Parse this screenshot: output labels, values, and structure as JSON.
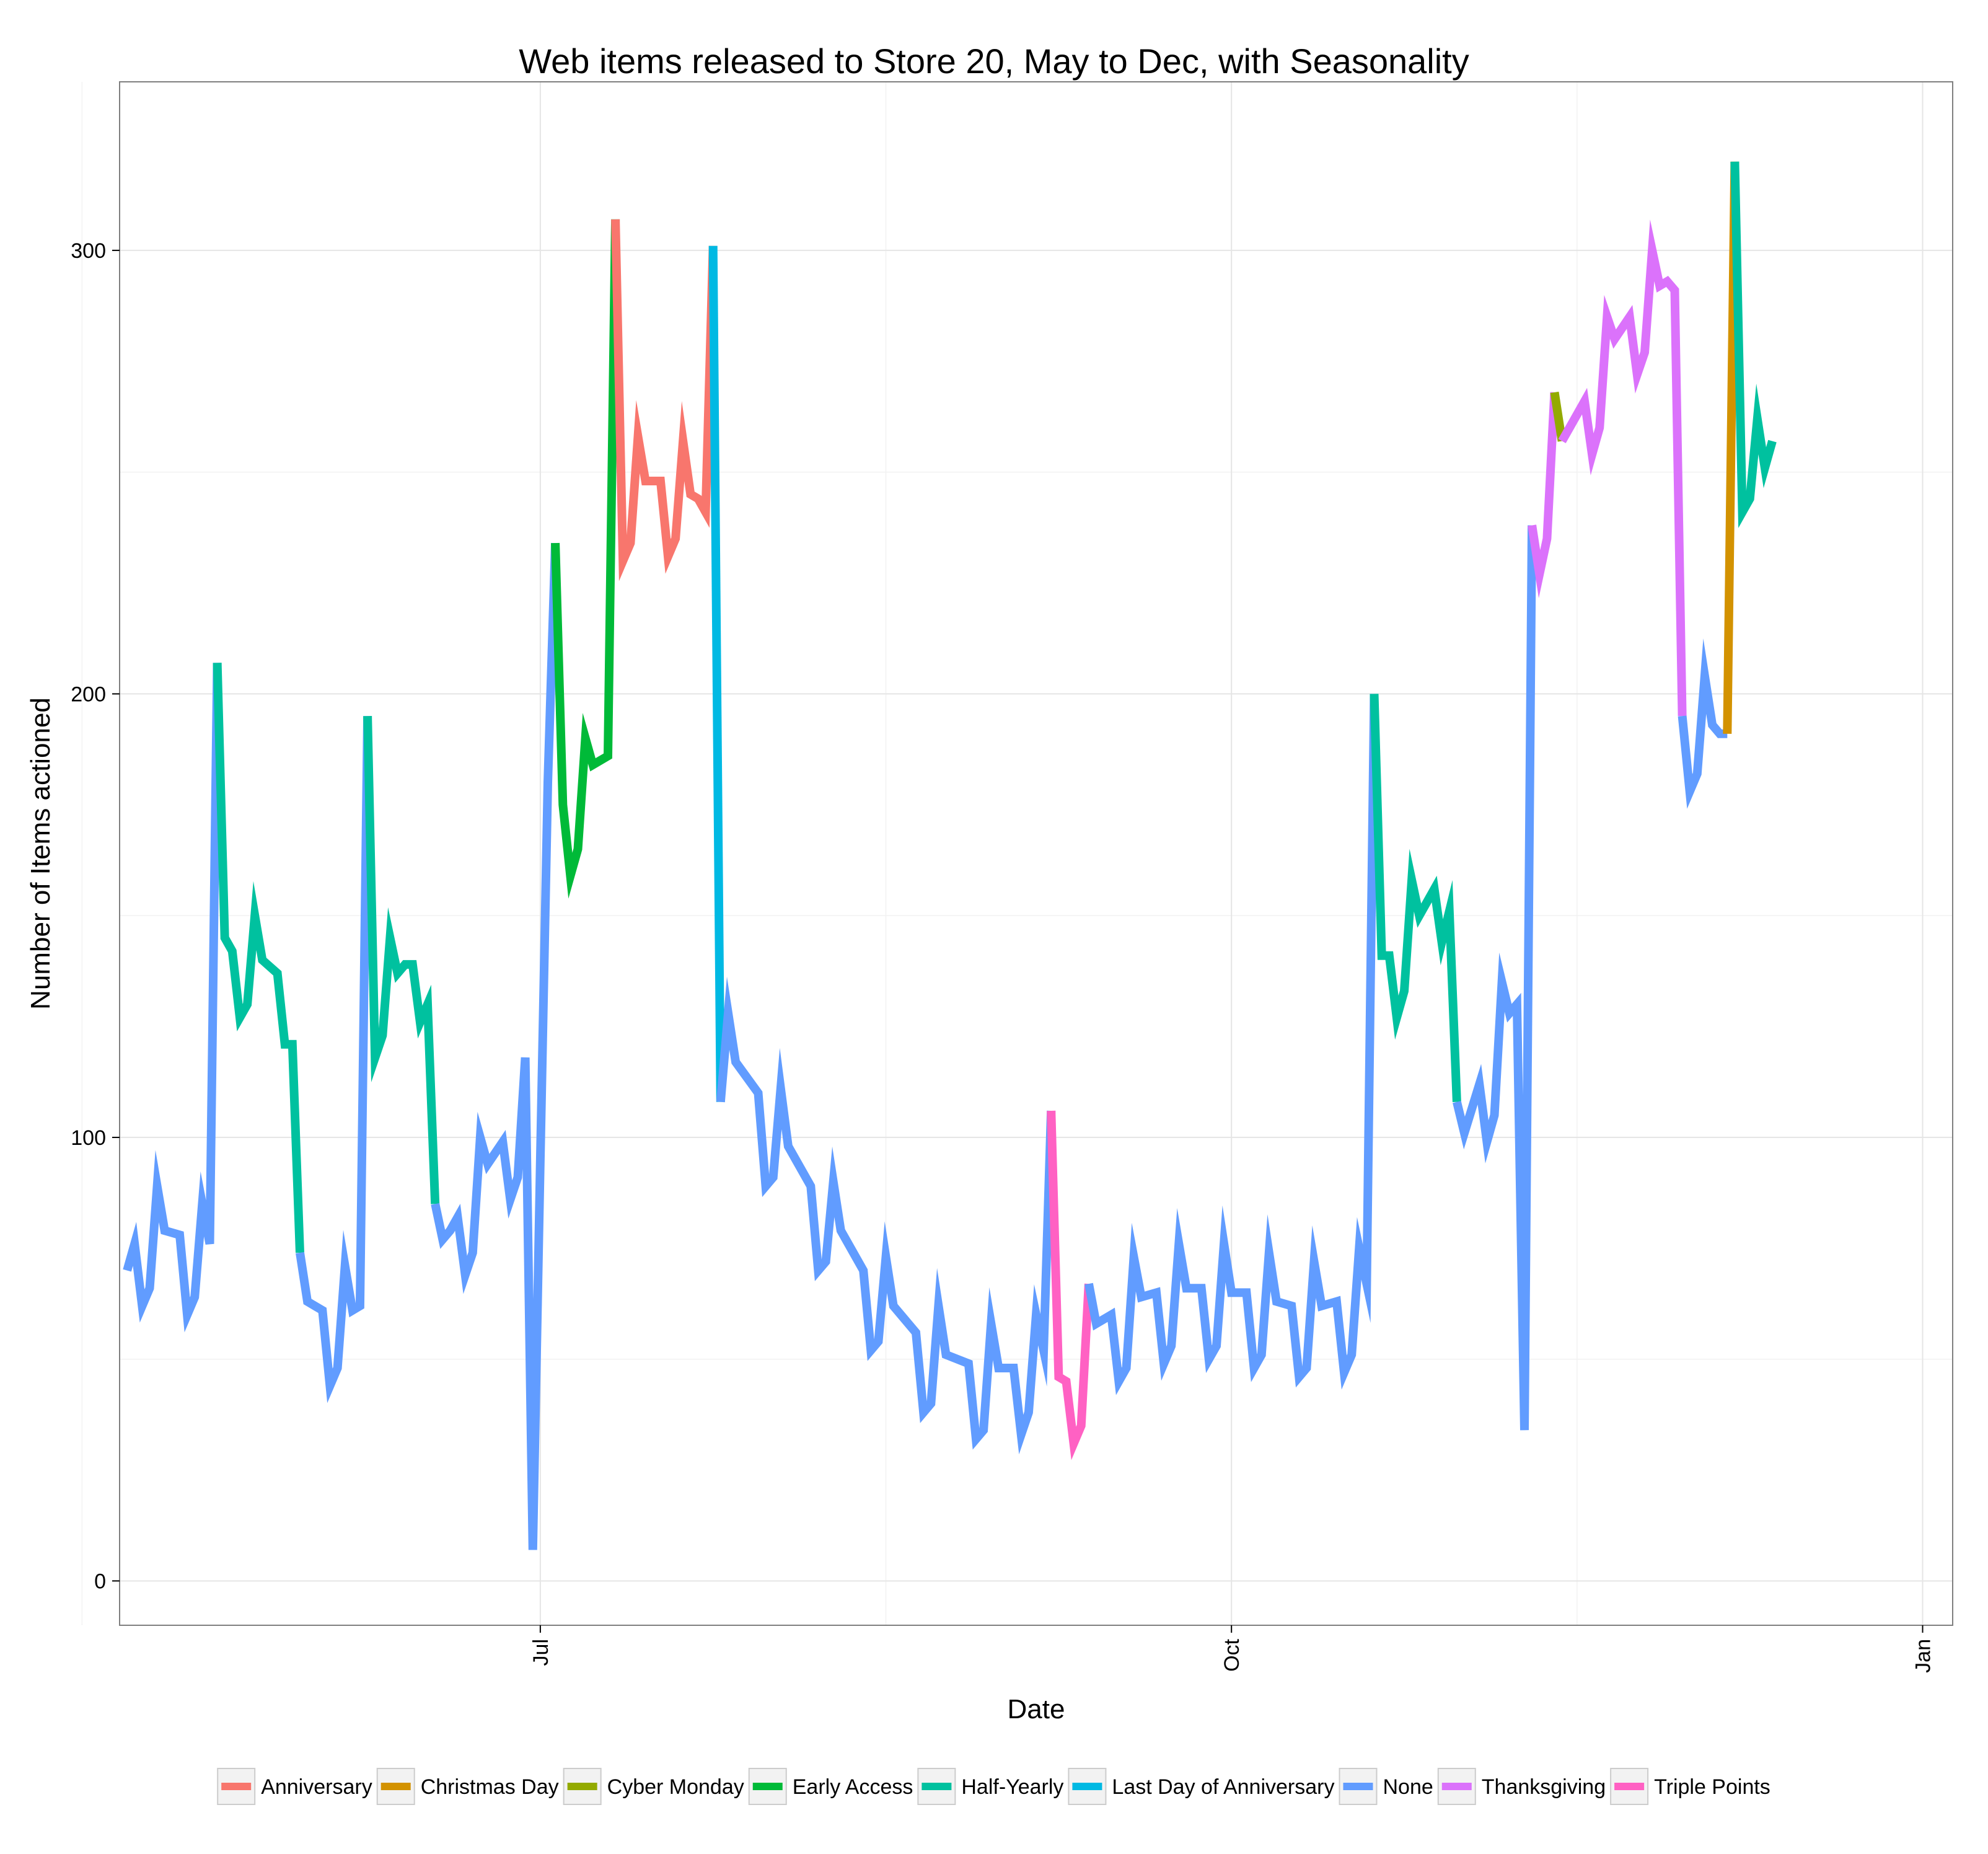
{
  "chart_data": {
    "type": "line",
    "title": "Web items released to Store 20, May to Dec, with Seasonality",
    "xlabel": "Date",
    "ylabel": "Number of Items actioned",
    "x_axis": {
      "type": "date",
      "range": [
        "2015-05-06",
        "2016-01-05"
      ],
      "ticks": [
        {
          "date": "2015-07-01",
          "label": "Jul"
        },
        {
          "date": "2015-10-01",
          "label": "Oct"
        },
        {
          "date": "2016-01-01",
          "label": "Jan"
        }
      ],
      "minor_grid": [
        "2015-05-01",
        "2015-08-16",
        "2015-11-16"
      ],
      "tick_label_rotation": "vertical"
    },
    "y_axis": {
      "range": [
        -10,
        338
      ],
      "ticks": [
        0,
        100,
        200,
        300
      ],
      "minor_grid": [
        50,
        150,
        250
      ]
    },
    "grid": true,
    "legend": {
      "position": "bottom",
      "entries": [
        "Anniversary",
        "Christmas Day",
        "Cyber Monday",
        "Early Access",
        "Half-Yearly",
        "Last Day of Anniversary",
        "None",
        "Thanksgiving",
        "Triple Points"
      ]
    },
    "colors": {
      "Anniversary": "#F8766D",
      "Christmas Day": "#D39200",
      "Cyber Monday": "#93AA00",
      "Early Access": "#00BA38",
      "Half-Yearly": "#00C19F",
      "Last Day of Anniversary": "#00B9E3",
      "None": "#619CFF",
      "Thanksgiving": "#DB72FB",
      "Triple Points": "#FF61C3"
    },
    "series": [
      {
        "name": "None",
        "points": [
          [
            "2015-05-07",
            70
          ],
          [
            "2015-05-08",
            76
          ],
          [
            "2015-05-09",
            62
          ],
          [
            "2015-05-10",
            66
          ],
          [
            "2015-05-11",
            89
          ],
          [
            "2015-05-12",
            79
          ],
          [
            "2015-05-14",
            78
          ],
          [
            "2015-05-15",
            60
          ],
          [
            "2015-05-16",
            64
          ],
          [
            "2015-05-17",
            85
          ],
          [
            "2015-05-18",
            76
          ],
          [
            "2015-05-19",
            207
          ]
        ]
      },
      {
        "name": "Half-Yearly",
        "points": [
          [
            "2015-05-19",
            207
          ],
          [
            "2015-05-20",
            145
          ],
          [
            "2015-05-21",
            142
          ],
          [
            "2015-05-22",
            127
          ],
          [
            "2015-05-23",
            130
          ],
          [
            "2015-05-24",
            150
          ],
          [
            "2015-05-25",
            140
          ],
          [
            "2015-05-27",
            137
          ],
          [
            "2015-05-28",
            121
          ],
          [
            "2015-05-29",
            121
          ],
          [
            "2015-05-30",
            74
          ]
        ]
      },
      {
        "name": "None",
        "points": [
          [
            "2015-05-30",
            74
          ],
          [
            "2015-05-31",
            63
          ],
          [
            "2015-06-02",
            61
          ],
          [
            "2015-06-03",
            44
          ],
          [
            "2015-06-04",
            48
          ],
          [
            "2015-06-05",
            71
          ],
          [
            "2015-06-06",
            61
          ],
          [
            "2015-06-07",
            62
          ],
          [
            "2015-06-08",
            195
          ]
        ]
      },
      {
        "name": "Half-Yearly",
        "points": [
          [
            "2015-06-08",
            195
          ],
          [
            "2015-06-09",
            118
          ],
          [
            "2015-06-10",
            123
          ],
          [
            "2015-06-11",
            145
          ],
          [
            "2015-06-12",
            137
          ],
          [
            "2015-06-13",
            139
          ],
          [
            "2015-06-14",
            139
          ],
          [
            "2015-06-15",
            126
          ],
          [
            "2015-06-16",
            130
          ],
          [
            "2015-06-17",
            85
          ]
        ]
      },
      {
        "name": "None",
        "points": [
          [
            "2015-06-17",
            85
          ],
          [
            "2015-06-18",
            77
          ],
          [
            "2015-06-19",
            79
          ],
          [
            "2015-06-20",
            82
          ],
          [
            "2015-06-21",
            69
          ],
          [
            "2015-06-22",
            74
          ],
          [
            "2015-06-23",
            100
          ],
          [
            "2015-06-24",
            94
          ],
          [
            "2015-06-26",
            99
          ],
          [
            "2015-06-27",
            86
          ],
          [
            "2015-06-28",
            91
          ],
          [
            "2015-06-29",
            118
          ],
          [
            "2015-06-30",
            7
          ],
          [
            "2015-07-01",
            95
          ],
          [
            "2015-07-02",
            180
          ],
          [
            "2015-07-03",
            234
          ]
        ]
      },
      {
        "name": "Early Access",
        "points": [
          [
            "2015-07-03",
            234
          ],
          [
            "2015-07-04",
            175
          ],
          [
            "2015-07-05",
            159
          ],
          [
            "2015-07-06",
            165
          ],
          [
            "2015-07-07",
            190
          ],
          [
            "2015-07-08",
            184
          ],
          [
            "2015-07-09",
            185
          ],
          [
            "2015-07-10",
            186
          ],
          [
            "2015-07-11",
            307
          ]
        ]
      },
      {
        "name": "Anniversary",
        "points": [
          [
            "2015-07-11",
            307
          ],
          [
            "2015-07-12",
            230
          ],
          [
            "2015-07-13",
            234
          ],
          [
            "2015-07-14",
            258
          ],
          [
            "2015-07-15",
            248
          ],
          [
            "2015-07-16",
            248
          ],
          [
            "2015-07-17",
            248
          ],
          [
            "2015-07-18",
            231
          ],
          [
            "2015-07-19",
            235
          ],
          [
            "2015-07-20",
            257
          ],
          [
            "2015-07-21",
            245
          ],
          [
            "2015-07-22",
            244
          ],
          [
            "2015-07-23",
            241
          ],
          [
            "2015-07-24",
            301
          ]
        ]
      },
      {
        "name": "Last Day of Anniversary",
        "points": [
          [
            "2015-07-24",
            301
          ],
          [
            "2015-07-25",
            108
          ]
        ]
      },
      {
        "name": "None",
        "points": [
          [
            "2015-07-25",
            108
          ],
          [
            "2015-07-26",
            128
          ],
          [
            "2015-07-27",
            117
          ],
          [
            "2015-07-30",
            110
          ],
          [
            "2015-07-31",
            89
          ],
          [
            "2015-08-01",
            91
          ],
          [
            "2015-08-02",
            111
          ],
          [
            "2015-08-03",
            98
          ],
          [
            "2015-08-06",
            89
          ],
          [
            "2015-08-07",
            70
          ],
          [
            "2015-08-08",
            72
          ],
          [
            "2015-08-09",
            90
          ],
          [
            "2015-08-10",
            79
          ],
          [
            "2015-08-13",
            70
          ],
          [
            "2015-08-14",
            52
          ],
          [
            "2015-08-15",
            54
          ],
          [
            "2015-08-16",
            73
          ],
          [
            "2015-08-17",
            62
          ],
          [
            "2015-08-20",
            56
          ],
          [
            "2015-08-21",
            38
          ],
          [
            "2015-08-22",
            40
          ],
          [
            "2015-08-23",
            62
          ],
          [
            "2015-08-24",
            51
          ],
          [
            "2015-08-27",
            49
          ],
          [
            "2015-08-28",
            32
          ],
          [
            "2015-08-29",
            34
          ],
          [
            "2015-08-30",
            58
          ],
          [
            "2015-08-31",
            48
          ],
          [
            "2015-09-02",
            48
          ],
          [
            "2015-09-03",
            33
          ],
          [
            "2015-09-04",
            38
          ],
          [
            "2015-09-05",
            60
          ],
          [
            "2015-09-06",
            52
          ],
          [
            "2015-09-07",
            106
          ]
        ]
      },
      {
        "name": "Triple Points",
        "points": [
          [
            "2015-09-07",
            106
          ],
          [
            "2015-09-08",
            46
          ],
          [
            "2015-09-09",
            45
          ],
          [
            "2015-09-10",
            31
          ],
          [
            "2015-09-11",
            35
          ],
          [
            "2015-09-12",
            67
          ]
        ]
      },
      {
        "name": "None",
        "points": [
          [
            "2015-09-12",
            67
          ],
          [
            "2015-09-13",
            58
          ],
          [
            "2015-09-15",
            60
          ],
          [
            "2015-09-16",
            45
          ],
          [
            "2015-09-17",
            48
          ],
          [
            "2015-09-18",
            73
          ],
          [
            "2015-09-19",
            64
          ],
          [
            "2015-09-21",
            65
          ],
          [
            "2015-09-22",
            49
          ],
          [
            "2015-09-23",
            53
          ],
          [
            "2015-09-24",
            76
          ],
          [
            "2015-09-25",
            66
          ],
          [
            "2015-09-27",
            66
          ],
          [
            "2015-09-28",
            50
          ],
          [
            "2015-09-29",
            53
          ],
          [
            "2015-09-30",
            76
          ],
          [
            "2015-10-01",
            65
          ],
          [
            "2015-10-03",
            65
          ],
          [
            "2015-10-04",
            48
          ],
          [
            "2015-10-05",
            51
          ],
          [
            "2015-10-06",
            74
          ],
          [
            "2015-10-07",
            63
          ],
          [
            "2015-10-09",
            62
          ],
          [
            "2015-10-10",
            46
          ],
          [
            "2015-10-11",
            48
          ],
          [
            "2015-10-12",
            72
          ],
          [
            "2015-10-13",
            62
          ],
          [
            "2015-10-15",
            63
          ],
          [
            "2015-10-16",
            47
          ],
          [
            "2015-10-17",
            51
          ],
          [
            "2015-10-18",
            75
          ],
          [
            "2015-10-19",
            67
          ],
          [
            "2015-10-20",
            200
          ]
        ]
      },
      {
        "name": "Half-Yearly",
        "points": [
          [
            "2015-10-20",
            200
          ],
          [
            "2015-10-21",
            141
          ],
          [
            "2015-10-22",
            141
          ],
          [
            "2015-10-23",
            127
          ],
          [
            "2015-10-24",
            133
          ],
          [
            "2015-10-25",
            158
          ],
          [
            "2015-10-26",
            150
          ],
          [
            "2015-10-28",
            156
          ],
          [
            "2015-10-29",
            144
          ],
          [
            "2015-10-30",
            151
          ],
          [
            "2015-10-31",
            108
          ]
        ]
      },
      {
        "name": "None",
        "points": [
          [
            "2015-10-31",
            108
          ],
          [
            "2015-11-01",
            101
          ],
          [
            "2015-11-03",
            112
          ],
          [
            "2015-11-04",
            99
          ],
          [
            "2015-11-05",
            105
          ],
          [
            "2015-11-06",
            135
          ],
          [
            "2015-11-07",
            128
          ],
          [
            "2015-11-08",
            130
          ],
          [
            "2015-11-09",
            34
          ],
          [
            "2015-11-10",
            238
          ]
        ]
      },
      {
        "name": "Thanksgiving",
        "points": [
          [
            "2015-11-10",
            238
          ],
          [
            "2015-11-11",
            227
          ],
          [
            "2015-11-12",
            235
          ],
          [
            "2015-11-13",
            268
          ]
        ]
      },
      {
        "name": "Cyber Monday",
        "points": [
          [
            "2015-11-13",
            268
          ],
          [
            "2015-11-14",
            257
          ]
        ]
      },
      {
        "name": "Thanksgiving",
        "points": [
          [
            "2015-11-14",
            257
          ],
          [
            "2015-11-17",
            266
          ],
          [
            "2015-11-18",
            254
          ],
          [
            "2015-11-19",
            260
          ],
          [
            "2015-11-20",
            285
          ],
          [
            "2015-11-21",
            280
          ],
          [
            "2015-11-23",
            285
          ],
          [
            "2015-11-24",
            272
          ],
          [
            "2015-11-25",
            277
          ],
          [
            "2015-11-26",
            300
          ],
          [
            "2015-11-27",
            292
          ],
          [
            "2015-11-28",
            293
          ],
          [
            "2015-11-29",
            291
          ],
          [
            "2015-11-30",
            195
          ]
        ]
      },
      {
        "name": "None",
        "points": [
          [
            "2015-11-30",
            195
          ],
          [
            "2015-12-01",
            178
          ],
          [
            "2015-12-02",
            182
          ],
          [
            "2015-12-03",
            204
          ],
          [
            "2015-12-04",
            193
          ],
          [
            "2015-12-05",
            191
          ],
          [
            "2015-12-06",
            191
          ]
        ]
      },
      {
        "name": "Christmas Day",
        "points": [
          [
            "2015-12-06",
            191
          ],
          [
            "2015-12-07",
            320
          ]
        ]
      },
      {
        "name": "Half-Yearly",
        "points": [
          [
            "2015-12-07",
            320
          ],
          [
            "2015-12-08",
            241
          ],
          [
            "2015-12-09",
            244
          ],
          [
            "2015-12-10",
            262
          ],
          [
            "2015-12-11",
            251
          ],
          [
            "2015-12-12",
            257
          ]
        ]
      }
    ]
  }
}
